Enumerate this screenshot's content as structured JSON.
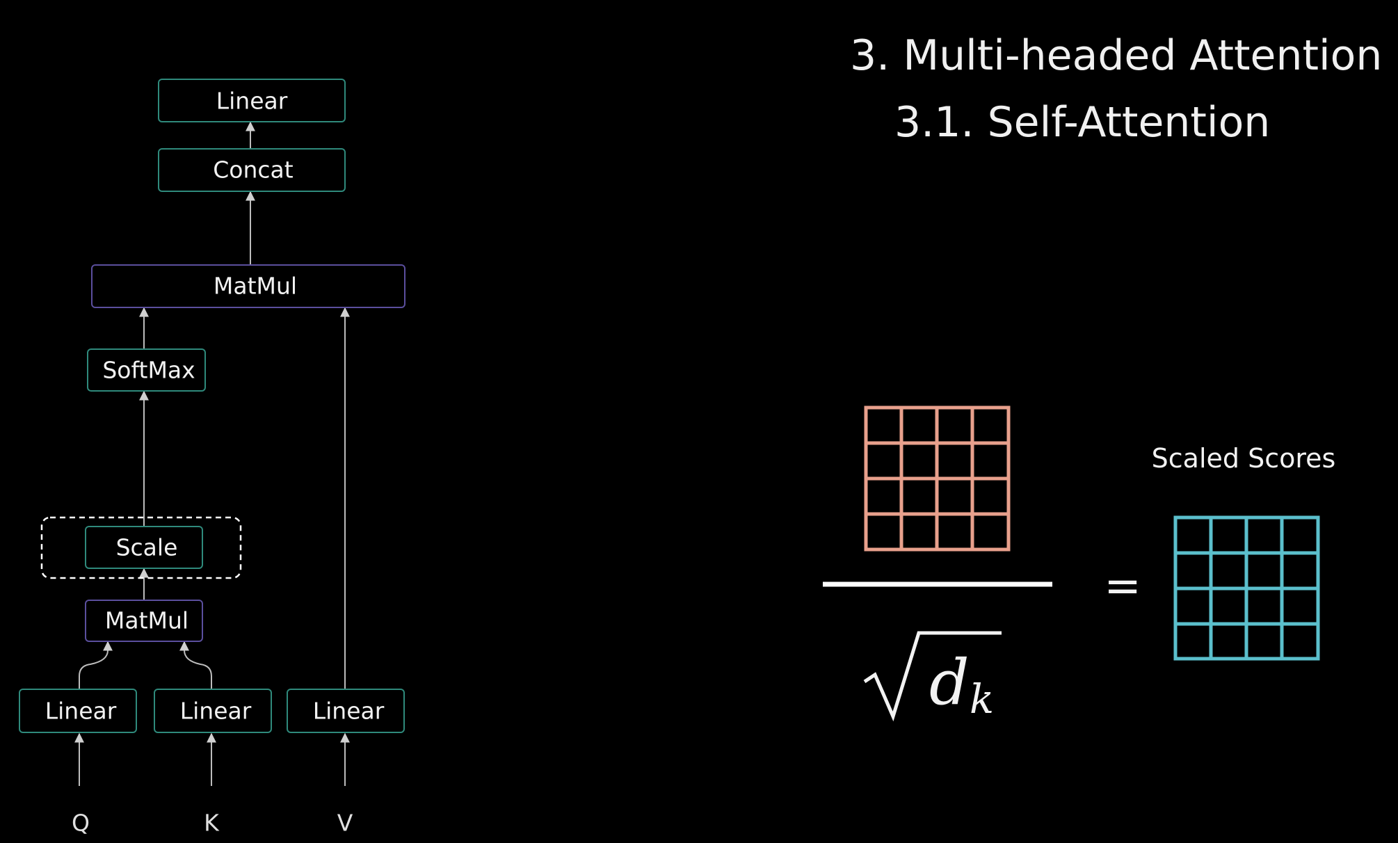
{
  "header": {
    "title": "3. Multi-headed Attention",
    "subtitle": "3.1. Self-Attention"
  },
  "architecture": {
    "nodes": {
      "linear_out": "Linear",
      "concat": "Concat",
      "matmul_top": "MatMul",
      "softmax": "SoftMax",
      "scale": "Scale",
      "matmul_bottom": "MatMul",
      "linear_q": "Linear",
      "linear_k": "Linear",
      "linear_v": "Linear"
    },
    "inputs": {
      "q": "Q",
      "k": "K",
      "v": "V"
    },
    "highlighted_node": "scale",
    "colors": {
      "default_border": "#2f8a7c",
      "matmul_border": "#5b4f9e",
      "highlight_border": "#ffffff"
    }
  },
  "equation": {
    "denominator_symbol": "d",
    "denominator_subscript": "k",
    "equals_sign": "=",
    "result_label": "Scaled Scores",
    "numerator_matrix": {
      "rows": 4,
      "cols": 4,
      "color": "#e8a08c"
    },
    "result_matrix": {
      "rows": 4,
      "cols": 4,
      "color": "#5bbfcc"
    }
  }
}
